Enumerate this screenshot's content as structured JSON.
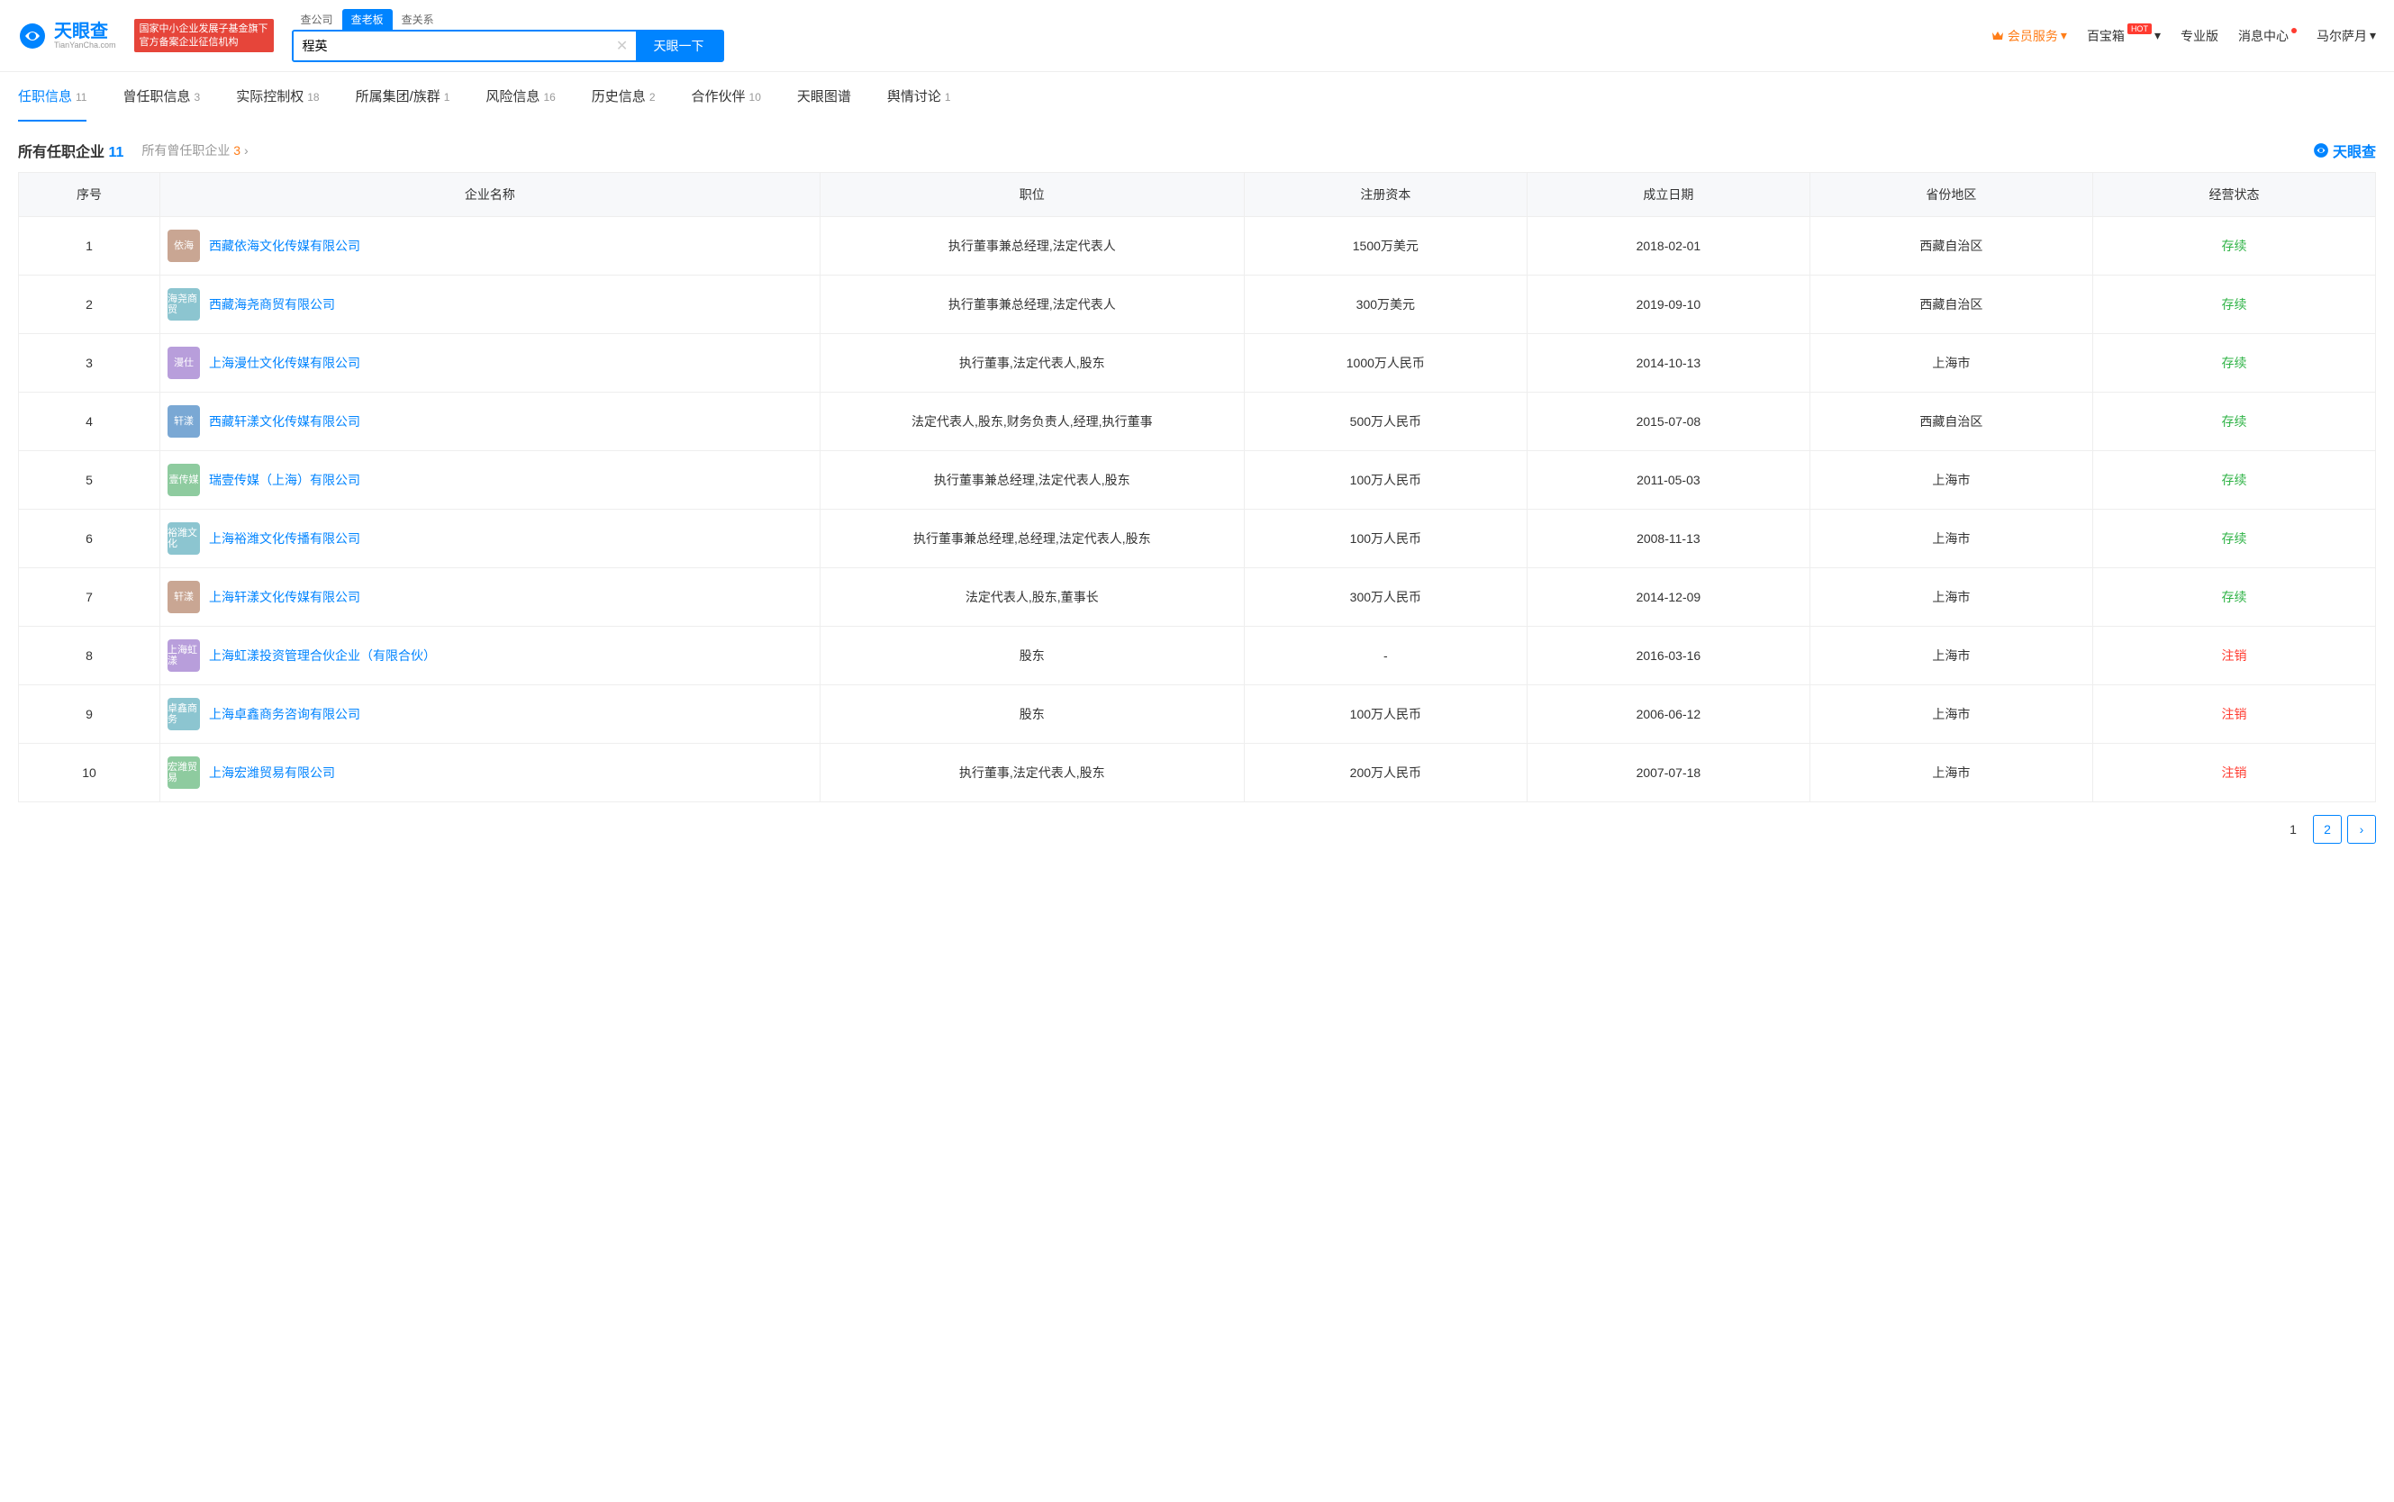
{
  "logo": {
    "title": "天眼查",
    "sub": "TianYanCha.com"
  },
  "badge": {
    "line1": "国家中小企业发展子基金旗下",
    "line2": "官方备案企业征信机构"
  },
  "search": {
    "tabs": [
      {
        "label": "查公司",
        "active": false
      },
      {
        "label": "查老板",
        "active": true
      },
      {
        "label": "查关系",
        "active": false
      }
    ],
    "value": "程英",
    "button": "天眼一下"
  },
  "headerNav": {
    "vip": "会员服务",
    "baibao": "百宝箱",
    "pro": "专业版",
    "msg": "消息中心",
    "user": "马尔萨月"
  },
  "tabs": [
    {
      "label": "任职信息",
      "count": "11",
      "active": true
    },
    {
      "label": "曾任职信息",
      "count": "3",
      "active": false
    },
    {
      "label": "实际控制权",
      "count": "18",
      "active": false
    },
    {
      "label": "所属集团/族群",
      "count": "1",
      "active": false
    },
    {
      "label": "风险信息",
      "count": "16",
      "active": false
    },
    {
      "label": "历史信息",
      "count": "2",
      "active": false
    },
    {
      "label": "合作伙伴",
      "count": "10",
      "active": false
    },
    {
      "label": "天眼图谱",
      "count": "",
      "active": false
    },
    {
      "label": "舆情讨论",
      "count": "1",
      "active": false
    }
  ],
  "section": {
    "title": "所有任职企业",
    "titleCount": "11",
    "sub": "所有曾任职企业",
    "subCount": "3",
    "watermark": "天眼查"
  },
  "columns": [
    "序号",
    "企业名称",
    "职位",
    "注册资本",
    "成立日期",
    "省份地区",
    "经营状态"
  ],
  "rows": [
    {
      "idx": "1",
      "logo": "依海",
      "logoColor": "#c9a693",
      "name": "西藏依海文化传媒有限公司",
      "pos": "执行董事兼总经理,法定代表人",
      "cap": "1500万美元",
      "date": "2018-02-01",
      "region": "西藏自治区",
      "status": "存续",
      "statusClass": "status-green"
    },
    {
      "idx": "2",
      "logo": "海尧商贸",
      "logoColor": "#8cc5d0",
      "name": "西藏海尧商贸有限公司",
      "pos": "执行董事兼总经理,法定代表人",
      "cap": "300万美元",
      "date": "2019-09-10",
      "region": "西藏自治区",
      "status": "存续",
      "statusClass": "status-green"
    },
    {
      "idx": "3",
      "logo": "漫仕",
      "logoColor": "#b89edb",
      "name": "上海漫仕文化传媒有限公司",
      "pos": "执行董事,法定代表人,股东",
      "cap": "1000万人民币",
      "date": "2014-10-13",
      "region": "上海市",
      "status": "存续",
      "statusClass": "status-green"
    },
    {
      "idx": "4",
      "logo": "轩漾",
      "logoColor": "#7aa8d4",
      "name": "西藏轩漾文化传媒有限公司",
      "pos": "法定代表人,股东,财务负责人,经理,执行董事",
      "cap": "500万人民币",
      "date": "2015-07-08",
      "region": "西藏自治区",
      "status": "存续",
      "statusClass": "status-green"
    },
    {
      "idx": "5",
      "logo": "壹传媒",
      "logoColor": "#8ecb9f",
      "name": "瑞壹传媒（上海）有限公司",
      "pos": "执行董事兼总经理,法定代表人,股东",
      "cap": "100万人民币",
      "date": "2011-05-03",
      "region": "上海市",
      "status": "存续",
      "statusClass": "status-green"
    },
    {
      "idx": "6",
      "logo": "裕潍文化",
      "logoColor": "#8cc5d0",
      "name": "上海裕潍文化传播有限公司",
      "pos": "执行董事兼总经理,总经理,法定代表人,股东",
      "cap": "100万人民币",
      "date": "2008-11-13",
      "region": "上海市",
      "status": "存续",
      "statusClass": "status-green"
    },
    {
      "idx": "7",
      "logo": "轩漾",
      "logoColor": "#c9a693",
      "name": "上海轩漾文化传媒有限公司",
      "pos": "法定代表人,股东,董事长",
      "cap": "300万人民币",
      "date": "2014-12-09",
      "region": "上海市",
      "status": "存续",
      "statusClass": "status-green"
    },
    {
      "idx": "8",
      "logo": "上海虹漾",
      "logoColor": "#b89edb",
      "name": "上海虹漾投资管理合伙企业（有限合伙）",
      "pos": "股东",
      "cap": "-",
      "date": "2016-03-16",
      "region": "上海市",
      "status": "注销",
      "statusClass": "status-red"
    },
    {
      "idx": "9",
      "logo": "卓鑫商务",
      "logoColor": "#8cc5d0",
      "name": "上海卓鑫商务咨询有限公司",
      "pos": "股东",
      "cap": "100万人民币",
      "date": "2006-06-12",
      "region": "上海市",
      "status": "注销",
      "statusClass": "status-red"
    },
    {
      "idx": "10",
      "logo": "宏潍贸易",
      "logoColor": "#8ecb9f",
      "name": "上海宏潍贸易有限公司",
      "pos": "执行董事,法定代表人,股东",
      "cap": "200万人民币",
      "date": "2007-07-18",
      "region": "上海市",
      "status": "注销",
      "statusClass": "status-red"
    }
  ],
  "pagination": {
    "current": "1",
    "pages": [
      "1",
      "2"
    ]
  }
}
